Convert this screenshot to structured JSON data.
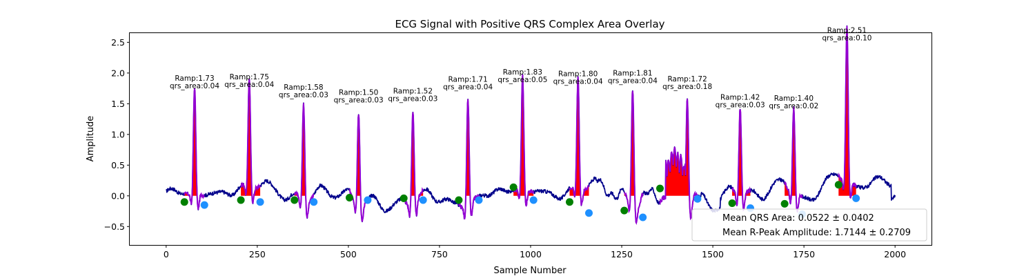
{
  "chart_data": {
    "type": "line",
    "title": "ECG Signal with Positive QRS Complex Area Overlay",
    "xlabel": "Sample Number",
    "ylabel": "Amplitude",
    "xlim": [
      -100,
      2100
    ],
    "ylim": [
      -0.8,
      2.65
    ],
    "x_ticks": [
      0,
      250,
      500,
      750,
      1000,
      1250,
      1500,
      1750,
      2000
    ],
    "y_ticks": [
      -0.5,
      0.0,
      0.5,
      1.0,
      1.5,
      2.0,
      2.5
    ],
    "grid": false,
    "colors": {
      "signal": "#00008b",
      "qrs_segment": "#9400d3",
      "qrs_area_fill": "#ff0000",
      "onset_marker": "#008000",
      "offset_marker": "#1e90ff"
    },
    "beats": [
      {
        "r_sample": 78,
        "ramp": 1.73,
        "qrs_area": 0.04,
        "ramp_label": "Ramp:1.73",
        "area_label": "qrs_area:0.04",
        "onset": [
          50,
          -0.1
        ],
        "offset": [
          105,
          -0.15
        ]
      },
      {
        "r_sample": 228,
        "ramp": 1.75,
        "qrs_area": 0.04,
        "ramp_label": "Ramp:1.75",
        "area_label": "qrs_area:0.04",
        "onset": [
          205,
          -0.07
        ],
        "offset": [
          258,
          -0.1
        ]
      },
      {
        "r_sample": 377,
        "ramp": 1.58,
        "qrs_area": 0.03,
        "ramp_label": "Ramp:1.58",
        "area_label": "qrs_area:0.03",
        "onset": [
          352,
          -0.07
        ],
        "offset": [
          405,
          -0.1
        ]
      },
      {
        "r_sample": 528,
        "ramp": 1.5,
        "qrs_area": 0.03,
        "ramp_label": "Ramp:1.50",
        "area_label": "qrs_area:0.03",
        "onset": [
          503,
          -0.03
        ],
        "offset": [
          553,
          -0.07
        ]
      },
      {
        "r_sample": 677,
        "ramp": 1.52,
        "qrs_area": 0.03,
        "ramp_label": "Ramp:1.52",
        "area_label": "qrs_area:0.03",
        "onset": [
          652,
          -0.04
        ],
        "offset": [
          705,
          -0.07
        ]
      },
      {
        "r_sample": 828,
        "ramp": 1.71,
        "qrs_area": 0.04,
        "ramp_label": "Ramp:1.71",
        "area_label": "qrs_area:0.04",
        "onset": [
          803,
          -0.07
        ],
        "offset": [
          858,
          -0.07
        ]
      },
      {
        "r_sample": 978,
        "ramp": 1.83,
        "qrs_area": 0.05,
        "ramp_label": "Ramp:1.83",
        "area_label": "qrs_area:0.05",
        "onset": [
          953,
          0.14
        ],
        "offset": [
          1008,
          -0.07
        ]
      },
      {
        "r_sample": 1130,
        "ramp": 1.8,
        "qrs_area": 0.04,
        "ramp_label": "Ramp:1.80",
        "area_label": "qrs_area:0.04",
        "onset": [
          1107,
          -0.1
        ],
        "offset": [
          1160,
          -0.28
        ]
      },
      {
        "r_sample": 1280,
        "ramp": 1.81,
        "qrs_area": 0.04,
        "ramp_label": "Ramp:1.81",
        "area_label": "qrs_area:0.04",
        "onset": [
          1257,
          -0.24
        ],
        "offset": [
          1308,
          -0.35
        ]
      },
      {
        "r_sample": 1430,
        "ramp": 1.72,
        "qrs_area": 0.18,
        "ramp_label": "Ramp:1.72",
        "area_label": "qrs_area:0.18",
        "onset": [
          1355,
          0.12
        ],
        "offset": [
          1458,
          -0.05
        ]
      },
      {
        "r_sample": 1575,
        "ramp": 1.42,
        "qrs_area": 0.03,
        "ramp_label": "Ramp:1.42",
        "area_label": "qrs_area:0.03",
        "onset": [
          1553,
          -0.12
        ],
        "offset": [
          1603,
          -0.2
        ]
      },
      {
        "r_sample": 1722,
        "ramp": 1.4,
        "qrs_area": 0.02,
        "ramp_label": "Ramp:1.40",
        "area_label": "qrs_area:0.02",
        "onset": [
          1697,
          -0.13
        ],
        "offset": [
          1745,
          -0.3
        ]
      },
      {
        "r_sample": 1868,
        "ramp": 2.51,
        "qrs_area": 0.1,
        "ramp_label": "Ramp:2.51",
        "area_label": "qrs_area:0.10",
        "onset": [
          1845,
          0.18
        ],
        "offset": [
          1893,
          -0.04
        ]
      }
    ],
    "legend": {
      "placement": "lower-right",
      "entries": [
        "Mean QRS Area: 0.0522 ± 0.0402",
        "Mean R-Peak Amplitude: 1.7144 ± 0.2709"
      ]
    }
  }
}
